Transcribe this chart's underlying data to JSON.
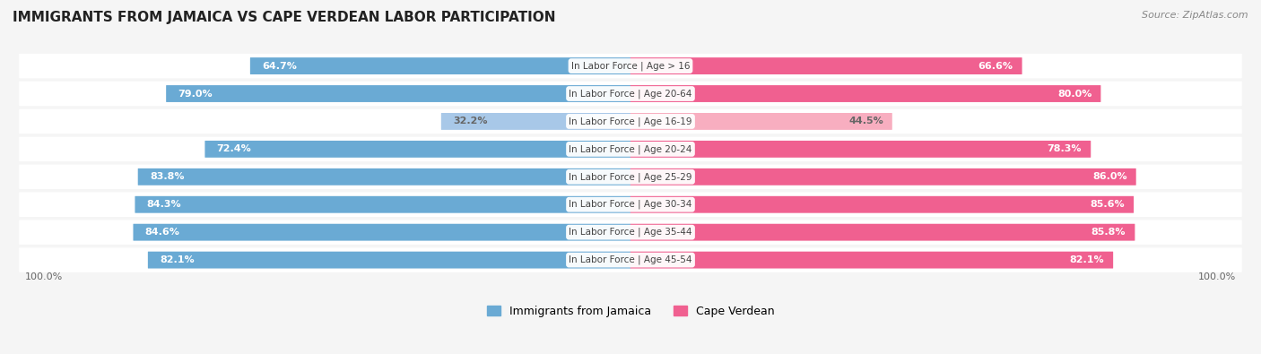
{
  "title": "IMMIGRANTS FROM JAMAICA VS CAPE VERDEAN LABOR PARTICIPATION",
  "source": "Source: ZipAtlas.com",
  "categories": [
    "In Labor Force | Age > 16",
    "In Labor Force | Age 20-64",
    "In Labor Force | Age 16-19",
    "In Labor Force | Age 20-24",
    "In Labor Force | Age 25-29",
    "In Labor Force | Age 30-34",
    "In Labor Force | Age 35-44",
    "In Labor Force | Age 45-54"
  ],
  "jamaica_values": [
    64.7,
    79.0,
    32.2,
    72.4,
    83.8,
    84.3,
    84.6,
    82.1
  ],
  "capeverde_values": [
    66.6,
    80.0,
    44.5,
    78.3,
    86.0,
    85.6,
    85.8,
    82.1
  ],
  "jamaica_color": "#6aaad4",
  "jamaica_color_light": "#a8c8e8",
  "capeverde_color": "#f06090",
  "capeverde_color_light": "#f8aec0",
  "label_color_dark": "#ffffff",
  "label_color_light": "#666666",
  "background_color": "#f5f5f5",
  "row_bg_color": "#ffffff",
  "center_label_color": "#444444",
  "axis_label_color": "#666666",
  "max_val": 100.0,
  "legend_jamaica": "Immigrants from Jamaica",
  "legend_capeverde": "Cape Verdean"
}
